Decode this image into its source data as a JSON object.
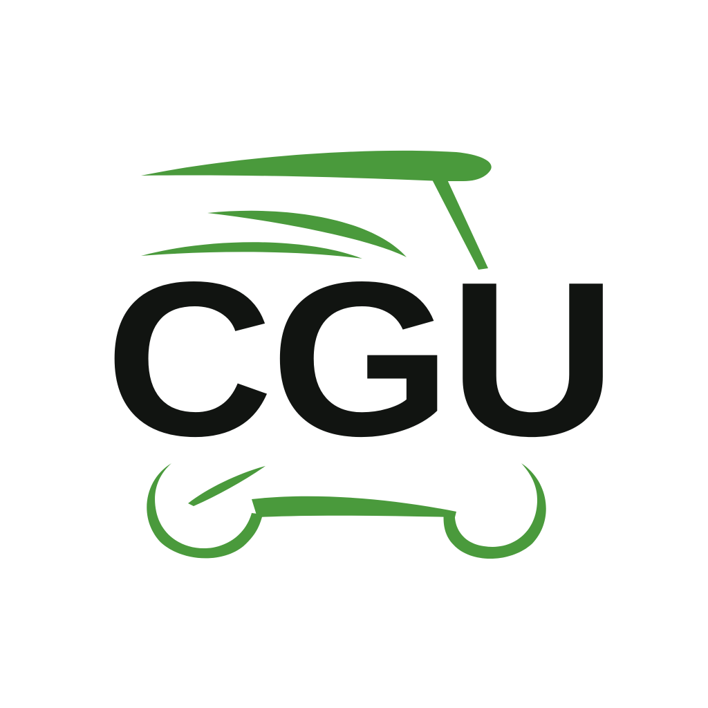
{
  "logo": {
    "text": "CGU",
    "text_color": "#111411",
    "accent_color": "#4a9a3c",
    "background_color": "#ffffff",
    "icon": "golf-cart-icon"
  }
}
